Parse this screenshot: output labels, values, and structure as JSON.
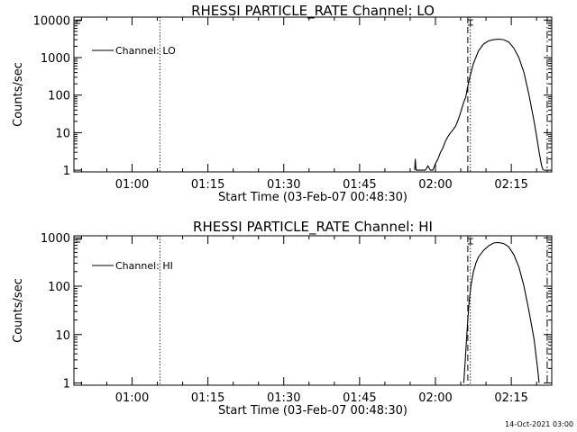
{
  "footer": {
    "timestamp": "14-Oct-2021 03:00"
  },
  "chart_data": [
    {
      "type": "line",
      "title": "RHESSI PARTICLE_RATE Channel: LO",
      "xlabel": "Start Time (03-Feb-07 00:48:30)",
      "ylabel": "Counts/sec",
      "yscale": "log",
      "ylim": [
        0.9,
        12000
      ],
      "xlim_minutes": [
        48.5,
        143
      ],
      "y_ticks": [
        {
          "value": 1,
          "label": "1"
        },
        {
          "value": 10,
          "label": "10"
        },
        {
          "value": 100,
          "label": "100"
        },
        {
          "value": 1000,
          "label": "1000"
        },
        {
          "value": 10000,
          "label": "10000"
        }
      ],
      "x_ticks": [
        {
          "value": 60,
          "label": "01:00"
        },
        {
          "value": 75,
          "label": "01:15"
        },
        {
          "value": 90,
          "label": "01:30"
        },
        {
          "value": 105,
          "label": "01:45"
        },
        {
          "value": 120,
          "label": "02:00"
        },
        {
          "value": 135,
          "label": "02:15"
        }
      ],
      "legend": {
        "position": "top-left",
        "label": "Channel: LO"
      },
      "vlines": [
        {
          "x": 65.5,
          "style": "dotted"
        },
        {
          "x": 126.4,
          "style": "dashed"
        },
        {
          "x": 126.9,
          "style": "dotted"
        },
        {
          "x": 142.1,
          "style": "dashdot"
        }
      ],
      "series": [
        {
          "x": [
            115.9,
            116.0,
            116.1,
            116.2,
            116.4,
            117.0,
            117.5,
            118.0,
            118.5,
            119.0,
            119.5,
            120.0,
            120.5,
            121.0,
            121.5,
            122.0,
            122.5,
            123.0,
            123.5,
            124.0,
            124.5,
            125.0,
            125.5,
            126.0,
            126.3,
            126.8,
            127.5,
            128.5,
            129.5,
            130.5,
            131.5,
            132.5,
            133.5,
            134.5,
            135.5,
            136.5,
            137.5,
            138.5,
            139.5,
            140.0,
            140.5,
            141.0,
            141.3
          ],
          "y": [
            1,
            2,
            1.3,
            1,
            1,
            1,
            1,
            1,
            1.3,
            1,
            1,
            1.5,
            2,
            3,
            4,
            6,
            8,
            10,
            12,
            15,
            22,
            35,
            60,
            90,
            150,
            300,
            700,
            1500,
            2300,
            2800,
            3000,
            3100,
            3000,
            2600,
            1800,
            1000,
            400,
            100,
            20,
            8,
            3,
            1.3,
            1
          ]
        }
      ]
    },
    {
      "type": "line",
      "title": "RHESSI PARTICLE_RATE Channel: HI",
      "xlabel": "Start Time (03-Feb-07 00:48:30)",
      "ylabel": "Counts/sec",
      "yscale": "log",
      "ylim": [
        0.9,
        1100
      ],
      "xlim_minutes": [
        48.5,
        143
      ],
      "y_ticks": [
        {
          "value": 1,
          "label": "1"
        },
        {
          "value": 10,
          "label": "10"
        },
        {
          "value": 100,
          "label": "100"
        },
        {
          "value": 1000,
          "label": "1000"
        }
      ],
      "x_ticks": [
        {
          "value": 60,
          "label": "01:00"
        },
        {
          "value": 75,
          "label": "01:15"
        },
        {
          "value": 90,
          "label": "01:30"
        },
        {
          "value": 105,
          "label": "01:45"
        },
        {
          "value": 120,
          "label": "02:00"
        },
        {
          "value": 135,
          "label": "02:15"
        }
      ],
      "legend": {
        "position": "top-left",
        "label": "Channel: HI"
      },
      "vlines": [
        {
          "x": 65.5,
          "style": "dotted"
        },
        {
          "x": 126.4,
          "style": "dashed"
        },
        {
          "x": 126.9,
          "style": "dotted"
        },
        {
          "x": 142.1,
          "style": "dashdot"
        }
      ],
      "series": [
        {
          "x": [
            125.6,
            125.9,
            126.2,
            126.6,
            127.0,
            127.5,
            128.0,
            128.5,
            129.5,
            130.5,
            131.5,
            132.5,
            133.5,
            134.5,
            135.5,
            136.5,
            137.5,
            138.5,
            139.5,
            140.2,
            140.5
          ],
          "y": [
            1,
            3,
            10,
            40,
            100,
            200,
            300,
            400,
            550,
            680,
            780,
            800,
            760,
            650,
            450,
            250,
            100,
            30,
            8,
            2,
            1
          ]
        }
      ]
    }
  ]
}
